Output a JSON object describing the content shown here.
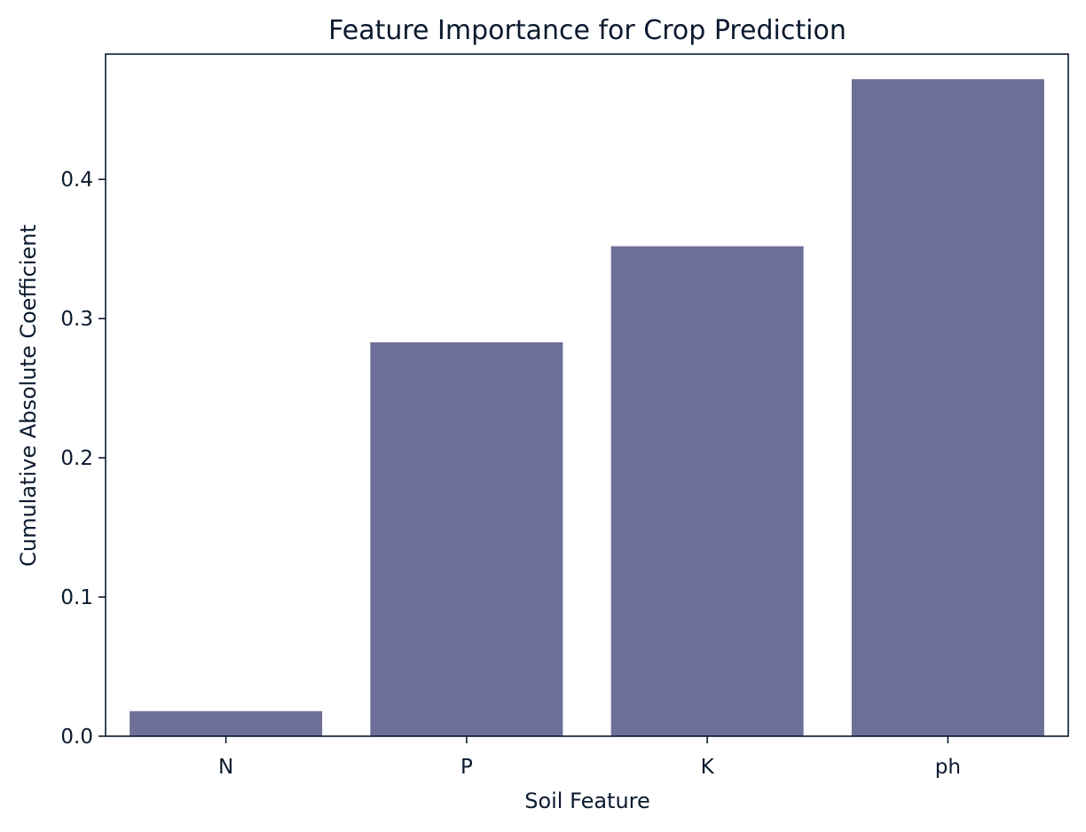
{
  "chart_data": {
    "type": "bar",
    "title": "Feature Importance for Crop Prediction",
    "xlabel": "Soil Feature",
    "ylabel": "Cumulative Absolute Coefficient",
    "categories": [
      "N",
      "P",
      "K",
      "ph"
    ],
    "values": [
      0.018,
      0.283,
      0.352,
      0.472
    ],
    "ylim": [
      0,
      0.49
    ],
    "yticks": [
      0.0,
      0.1,
      0.2,
      0.3,
      0.4
    ],
    "ytick_labels": [
      "0.0",
      "0.1",
      "0.2",
      "0.3",
      "0.4"
    ],
    "grid": false,
    "legend": "none",
    "bar_color": "#6d6f99",
    "axis_color": "#0b1a2e"
  }
}
